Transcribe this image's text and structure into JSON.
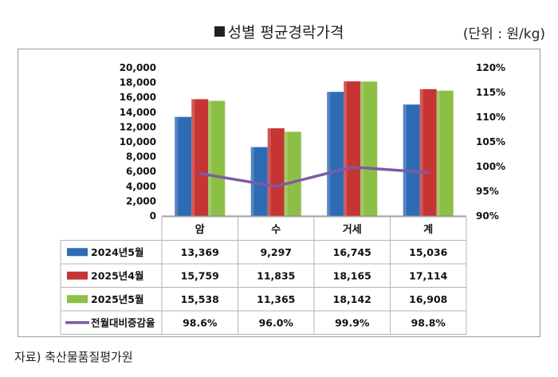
{
  "header": {
    "title": "성별 평균경락가격",
    "unit": "(단위 : 원/kg)"
  },
  "footer": {
    "source": "자료) 축산물품질평가원"
  },
  "chart_data": {
    "type": "bar",
    "categories": [
      "암",
      "수",
      "거세",
      "계"
    ],
    "series": [
      {
        "name": "2024년5월",
        "kind": "bar",
        "color": "#2e6bb5",
        "values": [
          13369,
          9297,
          16745,
          15036
        ],
        "labels": [
          "13,369",
          "9,297",
          "16,745",
          "15,036"
        ]
      },
      {
        "name": "2025년4월",
        "kind": "bar",
        "color": "#c73434",
        "values": [
          15759,
          11835,
          18165,
          17114
        ],
        "labels": [
          "15,759",
          "11,835",
          "18,165",
          "17,114"
        ]
      },
      {
        "name": "2025년5월",
        "kind": "bar",
        "color": "#8cbf45",
        "values": [
          15538,
          11365,
          18142,
          16908
        ],
        "labels": [
          "15,538",
          "11,365",
          "18,142",
          "16,908"
        ]
      },
      {
        "name": "전월대비증감율",
        "kind": "line",
        "axis": "right",
        "color": "#7d5aa6",
        "values": [
          98.6,
          96.0,
          99.9,
          98.8
        ],
        "labels": [
          "98.6%",
          "96.0%",
          "99.9%",
          "98.8%"
        ]
      }
    ],
    "y_left": {
      "ylim": [
        0,
        20000
      ],
      "ticks": [
        "0",
        "2,000",
        "4,000",
        "6,000",
        "8,000",
        "10,000",
        "12,000",
        "14,000",
        "16,000",
        "18,000",
        "20,000"
      ]
    },
    "y_right": {
      "ylim": [
        90,
        120
      ],
      "ticks": [
        "90%",
        "95%",
        "100%",
        "105%",
        "110%",
        "115%",
        "120%"
      ]
    },
    "grid": false,
    "legend": "data-table"
  }
}
